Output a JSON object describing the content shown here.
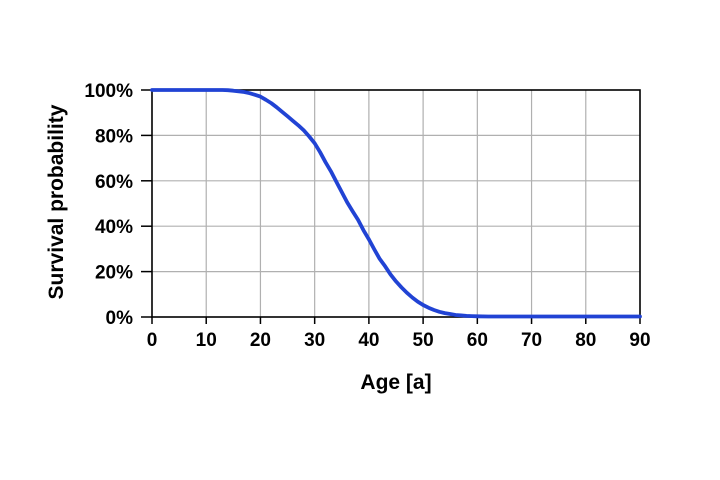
{
  "chart_data": {
    "type": "line",
    "xlabel": "Age [a]",
    "ylabel": "Survival probability",
    "xlim": [
      0,
      90
    ],
    "ylim": [
      0,
      100
    ],
    "x_tick_values": [
      0,
      10,
      20,
      30,
      40,
      50,
      60,
      70,
      80,
      90
    ],
    "x_tick_labels": [
      "0",
      "10",
      "20",
      "30",
      "40",
      "50",
      "60",
      "70",
      "80",
      "90"
    ],
    "y_tick_values": [
      0,
      20,
      40,
      60,
      80,
      100
    ],
    "y_tick_labels": [
      "0%",
      "20%",
      "40%",
      "60%",
      "80%",
      "100%"
    ],
    "grid": true,
    "legend": "none",
    "colors": {
      "line": "#2143d4",
      "grid": "#b0b0b0",
      "axis": "#000000",
      "background": "#ffffff",
      "text": "#000000"
    },
    "series": [
      {
        "name": "Survival probability",
        "type": "line",
        "points": [
          [
            0,
            100
          ],
          [
            2,
            100
          ],
          [
            4,
            100
          ],
          [
            6,
            100
          ],
          [
            8,
            100
          ],
          [
            10,
            100
          ],
          [
            12,
            100
          ],
          [
            13,
            100
          ],
          [
            14,
            99.9
          ],
          [
            15,
            99.7
          ],
          [
            16,
            99.4
          ],
          [
            17,
            99.1
          ],
          [
            18,
            98.6
          ],
          [
            19,
            97.9
          ],
          [
            20,
            97.1
          ],
          [
            21,
            95.7
          ],
          [
            22,
            94.2
          ],
          [
            23,
            92.4
          ],
          [
            24,
            90.4
          ],
          [
            25,
            88.4
          ],
          [
            26,
            86.4
          ],
          [
            27,
            84.4
          ],
          [
            28,
            82.2
          ],
          [
            29,
            79.5
          ],
          [
            30,
            76.5
          ],
          [
            31,
            72.6
          ],
          [
            32,
            68.2
          ],
          [
            33,
            64.2
          ],
          [
            34,
            59.5
          ],
          [
            35,
            55.0
          ],
          [
            36,
            50.5
          ],
          [
            37,
            46.6
          ],
          [
            38,
            42.8
          ],
          [
            39,
            38.2
          ],
          [
            40,
            34.2
          ],
          [
            41,
            29.8
          ],
          [
            42,
            25.6
          ],
          [
            43,
            22.3
          ],
          [
            44,
            18.7
          ],
          [
            45,
            15.7
          ],
          [
            46,
            13.1
          ],
          [
            47,
            10.7
          ],
          [
            48,
            8.6
          ],
          [
            49,
            6.8
          ],
          [
            50,
            5.3
          ],
          [
            51,
            4.1
          ],
          [
            52,
            3.1
          ],
          [
            53,
            2.3
          ],
          [
            54,
            1.7
          ],
          [
            55,
            1.3
          ],
          [
            56,
            0.9
          ],
          [
            57,
            0.7
          ],
          [
            58,
            0.5
          ],
          [
            59,
            0.4
          ],
          [
            60,
            0.3
          ],
          [
            62,
            0.2
          ],
          [
            65,
            0.2
          ],
          [
            70,
            0.2
          ],
          [
            75,
            0.2
          ],
          [
            80,
            0.2
          ],
          [
            85,
            0.2
          ],
          [
            90,
            0.2
          ]
        ]
      }
    ]
  }
}
